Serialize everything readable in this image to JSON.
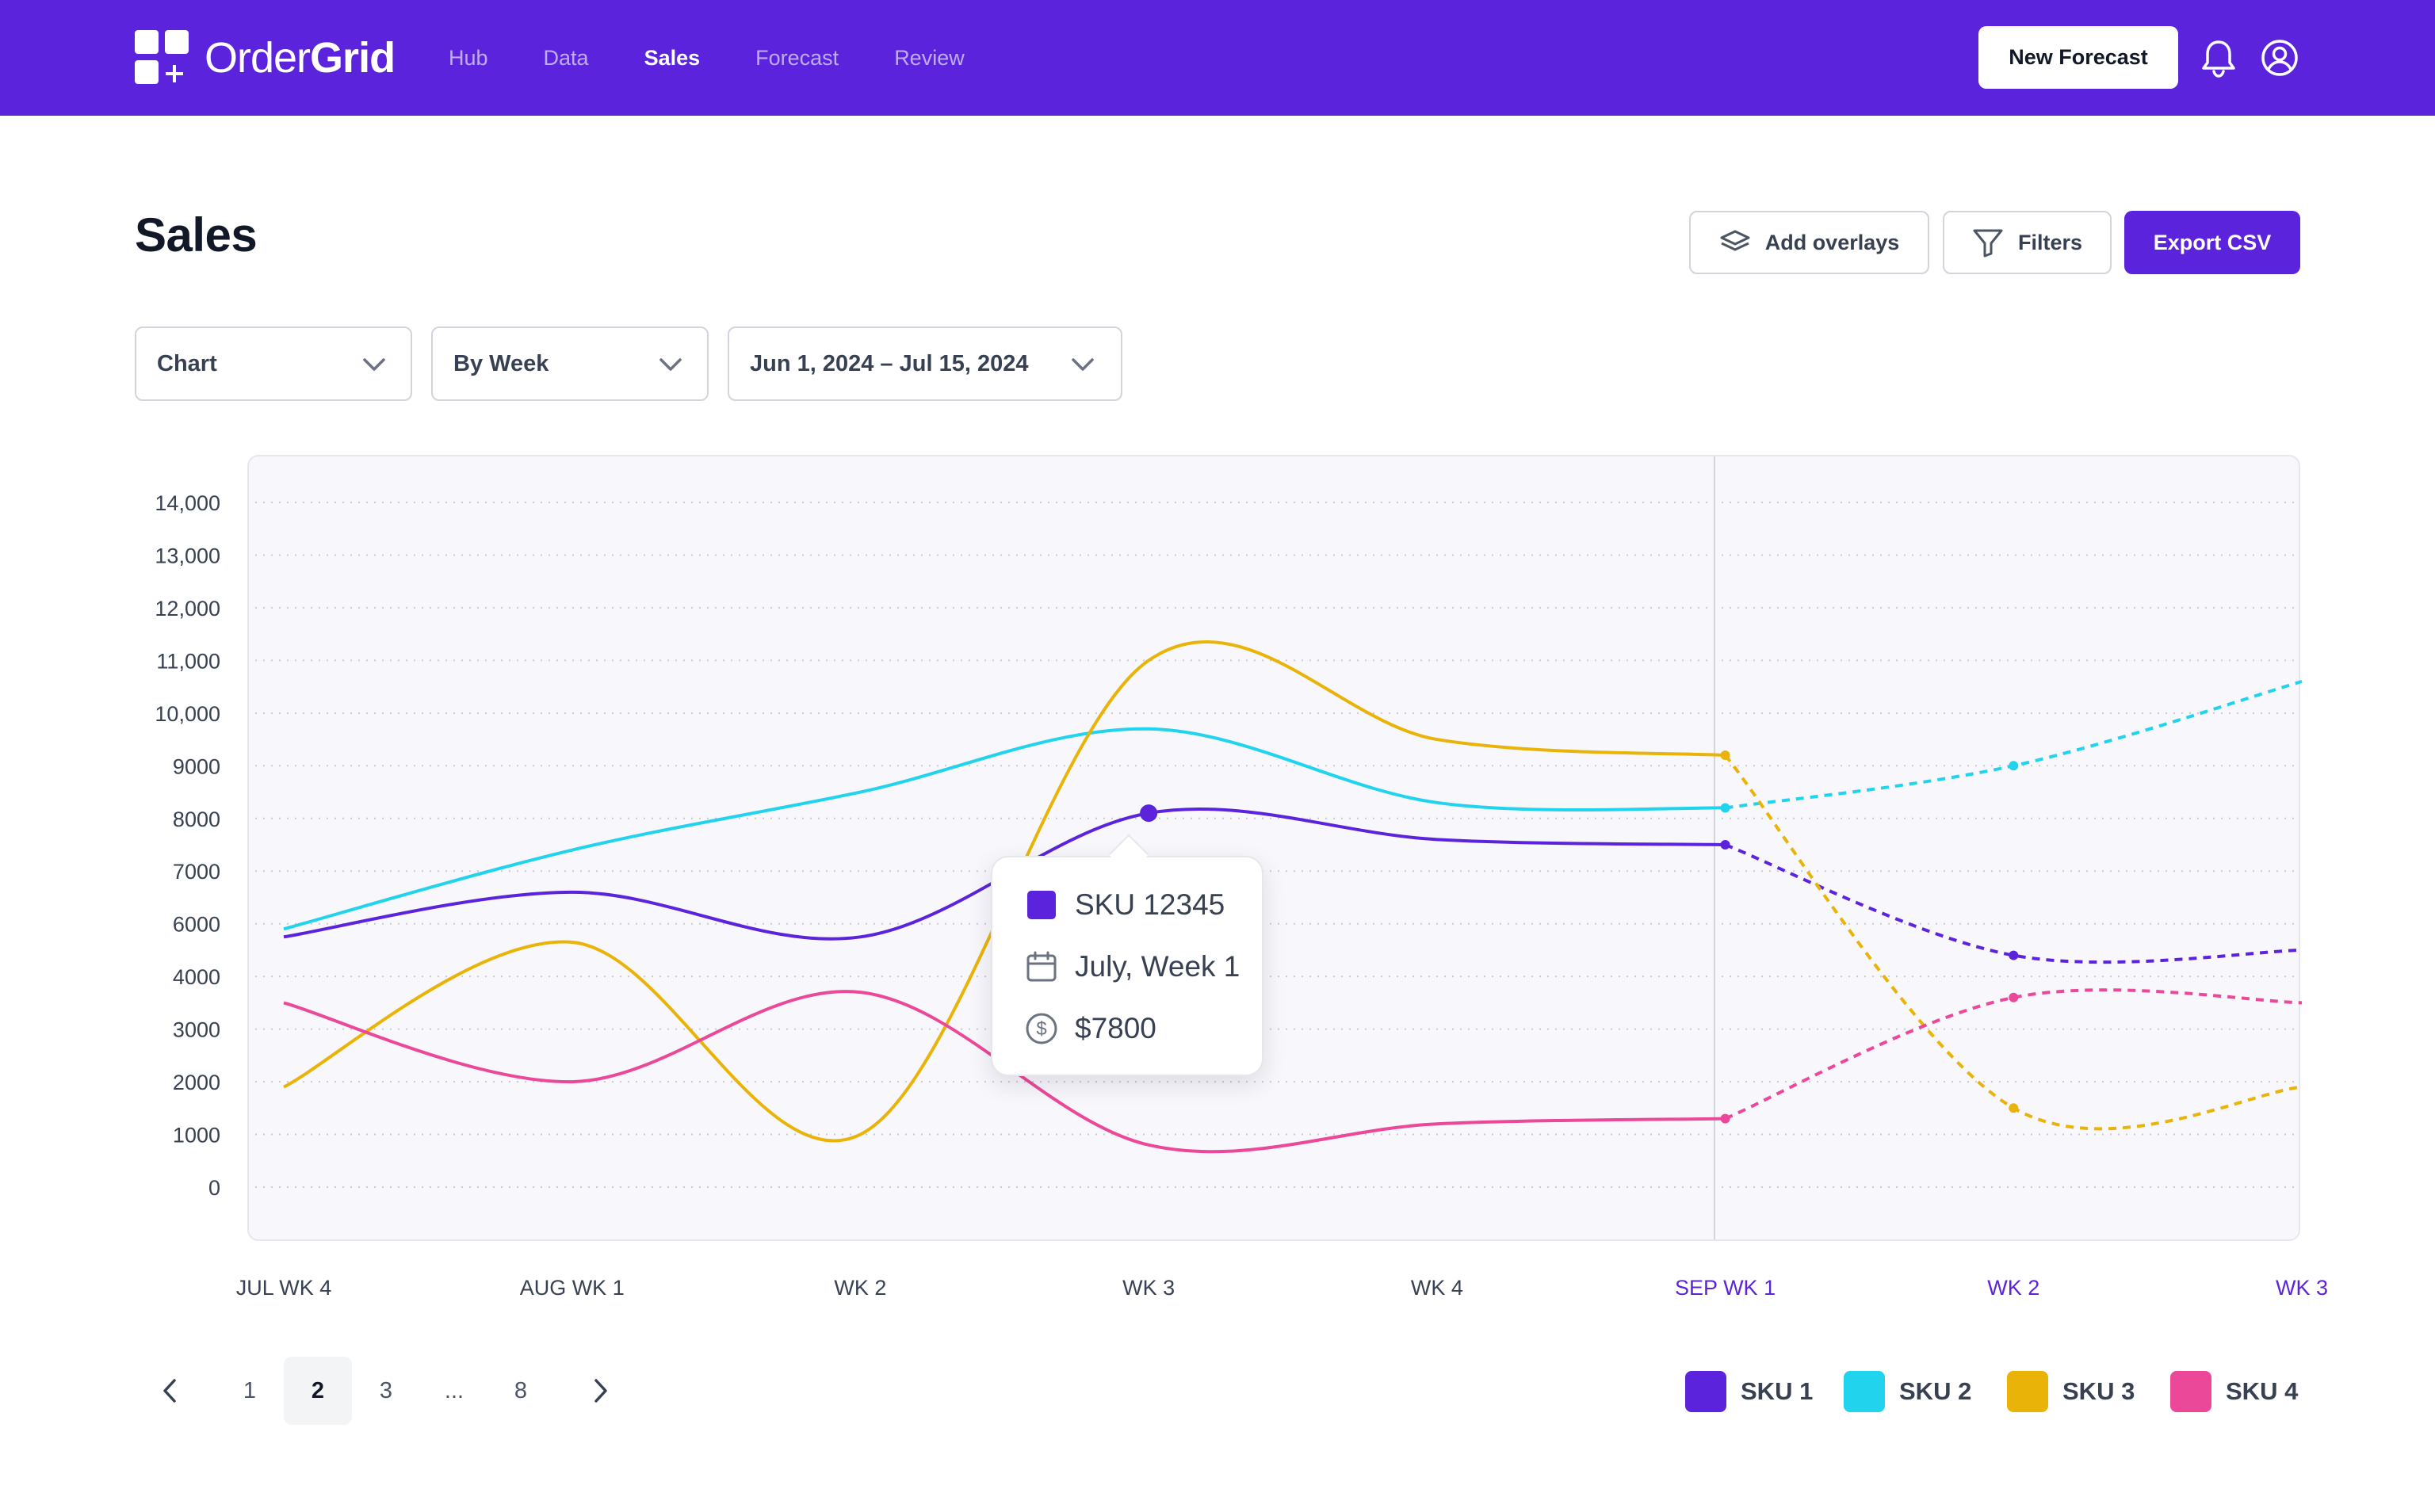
{
  "app": {
    "name_light": "Order",
    "name_bold": "Grid"
  },
  "nav": {
    "items": [
      {
        "label": "Hub",
        "active": false
      },
      {
        "label": "Data",
        "active": false
      },
      {
        "label": "Sales",
        "active": true
      },
      {
        "label": "Forecast",
        "active": false
      },
      {
        "label": "Review",
        "active": false
      }
    ]
  },
  "header": {
    "new_forecast_label": "New Forecast",
    "notifications_icon": "bell-icon",
    "account_icon": "user-circle-icon"
  },
  "page": {
    "title": "Sales",
    "add_overlays_label": "Add overlays",
    "filters_label": "Filters",
    "export_label": "Export CSV"
  },
  "controls": {
    "view_select": "Chart",
    "grouping_select": "By Week",
    "date_range": "Jun 1, 2024 – Jul 15, 2024"
  },
  "tooltip": {
    "sku": "SKU 12345",
    "period": "July, Week 1",
    "value": "$7800"
  },
  "pagination": {
    "pages": [
      "1",
      "2",
      "3",
      "...",
      "8"
    ],
    "current": "2"
  },
  "legend": [
    {
      "label": "SKU 1",
      "color": "#5b24dc"
    },
    {
      "label": "SKU 2",
      "color": "#22d3ee"
    },
    {
      "label": "SKU 3",
      "color": "#eab308"
    },
    {
      "label": "SKU 4",
      "color": "#ec4899"
    }
  ],
  "colors": {
    "brand": "#5b24dc",
    "forecast_axis_label": "#5b24dc",
    "actual_axis_label": "#374151"
  },
  "chart_data": {
    "type": "line",
    "title": "",
    "xlabel": "",
    "ylabel": "",
    "ylim": [
      0,
      14000
    ],
    "y_ticks": [
      "14,000",
      "13,000",
      "12,000",
      "11,000",
      "10,000",
      "9000",
      "8000",
      "7000",
      "6000",
      "4000",
      "3000",
      "2000",
      "1000",
      "0"
    ],
    "categories": [
      "JUL WK 4",
      "AUG WK 1",
      "WK 2",
      "WK 3",
      "WK 4",
      "SEP WK 1",
      "WK 2",
      "WK 3"
    ],
    "forecast_categories": [
      "SEP WK 1",
      "WK 2",
      "WK 3"
    ],
    "grid": true,
    "legend_position": "bottom-right",
    "series": [
      {
        "name": "SKU 1",
        "color": "#5b24dc",
        "x": [
          "JUL WK 4",
          "AUG WK 1",
          "WK 2",
          "WK 3",
          "WK 4",
          "SEP WK 1",
          "WK 2",
          "WK 3"
        ],
        "values": [
          5500,
          6600,
          5500,
          8100,
          7600,
          7500,
          4800,
          5000
        ],
        "forecast_from": "SEP WK 1"
      },
      {
        "name": "SKU 2",
        "color": "#22d3ee",
        "x": [
          "JUL WK 4",
          "AUG WK 1",
          "WK 2",
          "WK 3",
          "WK 4",
          "SEP WK 1",
          "WK 2",
          "WK 3"
        ],
        "values": [
          5800,
          7400,
          8500,
          9700,
          8300,
          8200,
          9000,
          10600
        ],
        "forecast_from": "SEP WK 1"
      },
      {
        "name": "SKU 3",
        "color": "#eab308",
        "x": [
          "JUL WK 4",
          "AUG WK 1",
          "WK 2",
          "WK 3",
          "WK 4",
          "SEP WK 1",
          "WK 2",
          "WK 3"
        ],
        "values": [
          1900,
          5300,
          1000,
          11000,
          9500,
          9200,
          1500,
          1900
        ],
        "forecast_from": "SEP WK 1"
      },
      {
        "name": "SKU 4",
        "color": "#ec4899",
        "x": [
          "JUL WK 4",
          "AUG WK 1",
          "WK 2",
          "WK 3",
          "WK 4",
          "SEP WK 1",
          "WK 2",
          "WK 3"
        ],
        "values": [
          3500,
          2000,
          3700,
          800,
          1200,
          1300,
          3600,
          3500
        ],
        "forecast_from": "SEP WK 1"
      }
    ],
    "highlight": {
      "series": "SKU 1",
      "x": "WK 3",
      "value": 8100
    }
  }
}
